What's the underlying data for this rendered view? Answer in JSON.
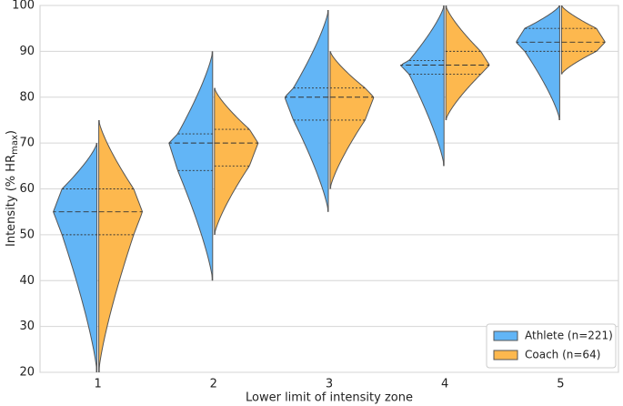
{
  "chart_data": {
    "type": "split-violin",
    "xlabel": "Lower limit of intensity zone",
    "ylabel": {
      "main": "Intensity (% HR",
      "sub": "max",
      "end": ")"
    },
    "categories": [
      "1",
      "2",
      "3",
      "4",
      "5"
    ],
    "ylim": [
      20,
      100
    ],
    "yticks": [
      20,
      30,
      40,
      50,
      60,
      70,
      80,
      90,
      100
    ],
    "grid": true,
    "legend": "lower right",
    "series": [
      {
        "name": "Athlete (n=221)",
        "color": "#62b5f6",
        "min": [
          20,
          40,
          55,
          65,
          75
        ],
        "q1": [
          50,
          64,
          75,
          85,
          90
        ],
        "median": [
          55,
          70,
          80,
          87,
          92
        ],
        "q3": [
          60,
          72,
          82,
          88,
          95
        ],
        "max": [
          70,
          90,
          99,
          100,
          100
        ]
      },
      {
        "name": "Coach (n=64)",
        "color": "#fdb84e",
        "min": [
          20,
          50,
          60,
          75,
          85
        ],
        "q1": [
          50,
          65,
          75,
          85,
          90
        ],
        "median": [
          55,
          70,
          80,
          87,
          92
        ],
        "q3": [
          60,
          73,
          82,
          90,
          95
        ],
        "max": [
          75,
          82,
          90,
          100,
          100
        ]
      }
    ]
  }
}
